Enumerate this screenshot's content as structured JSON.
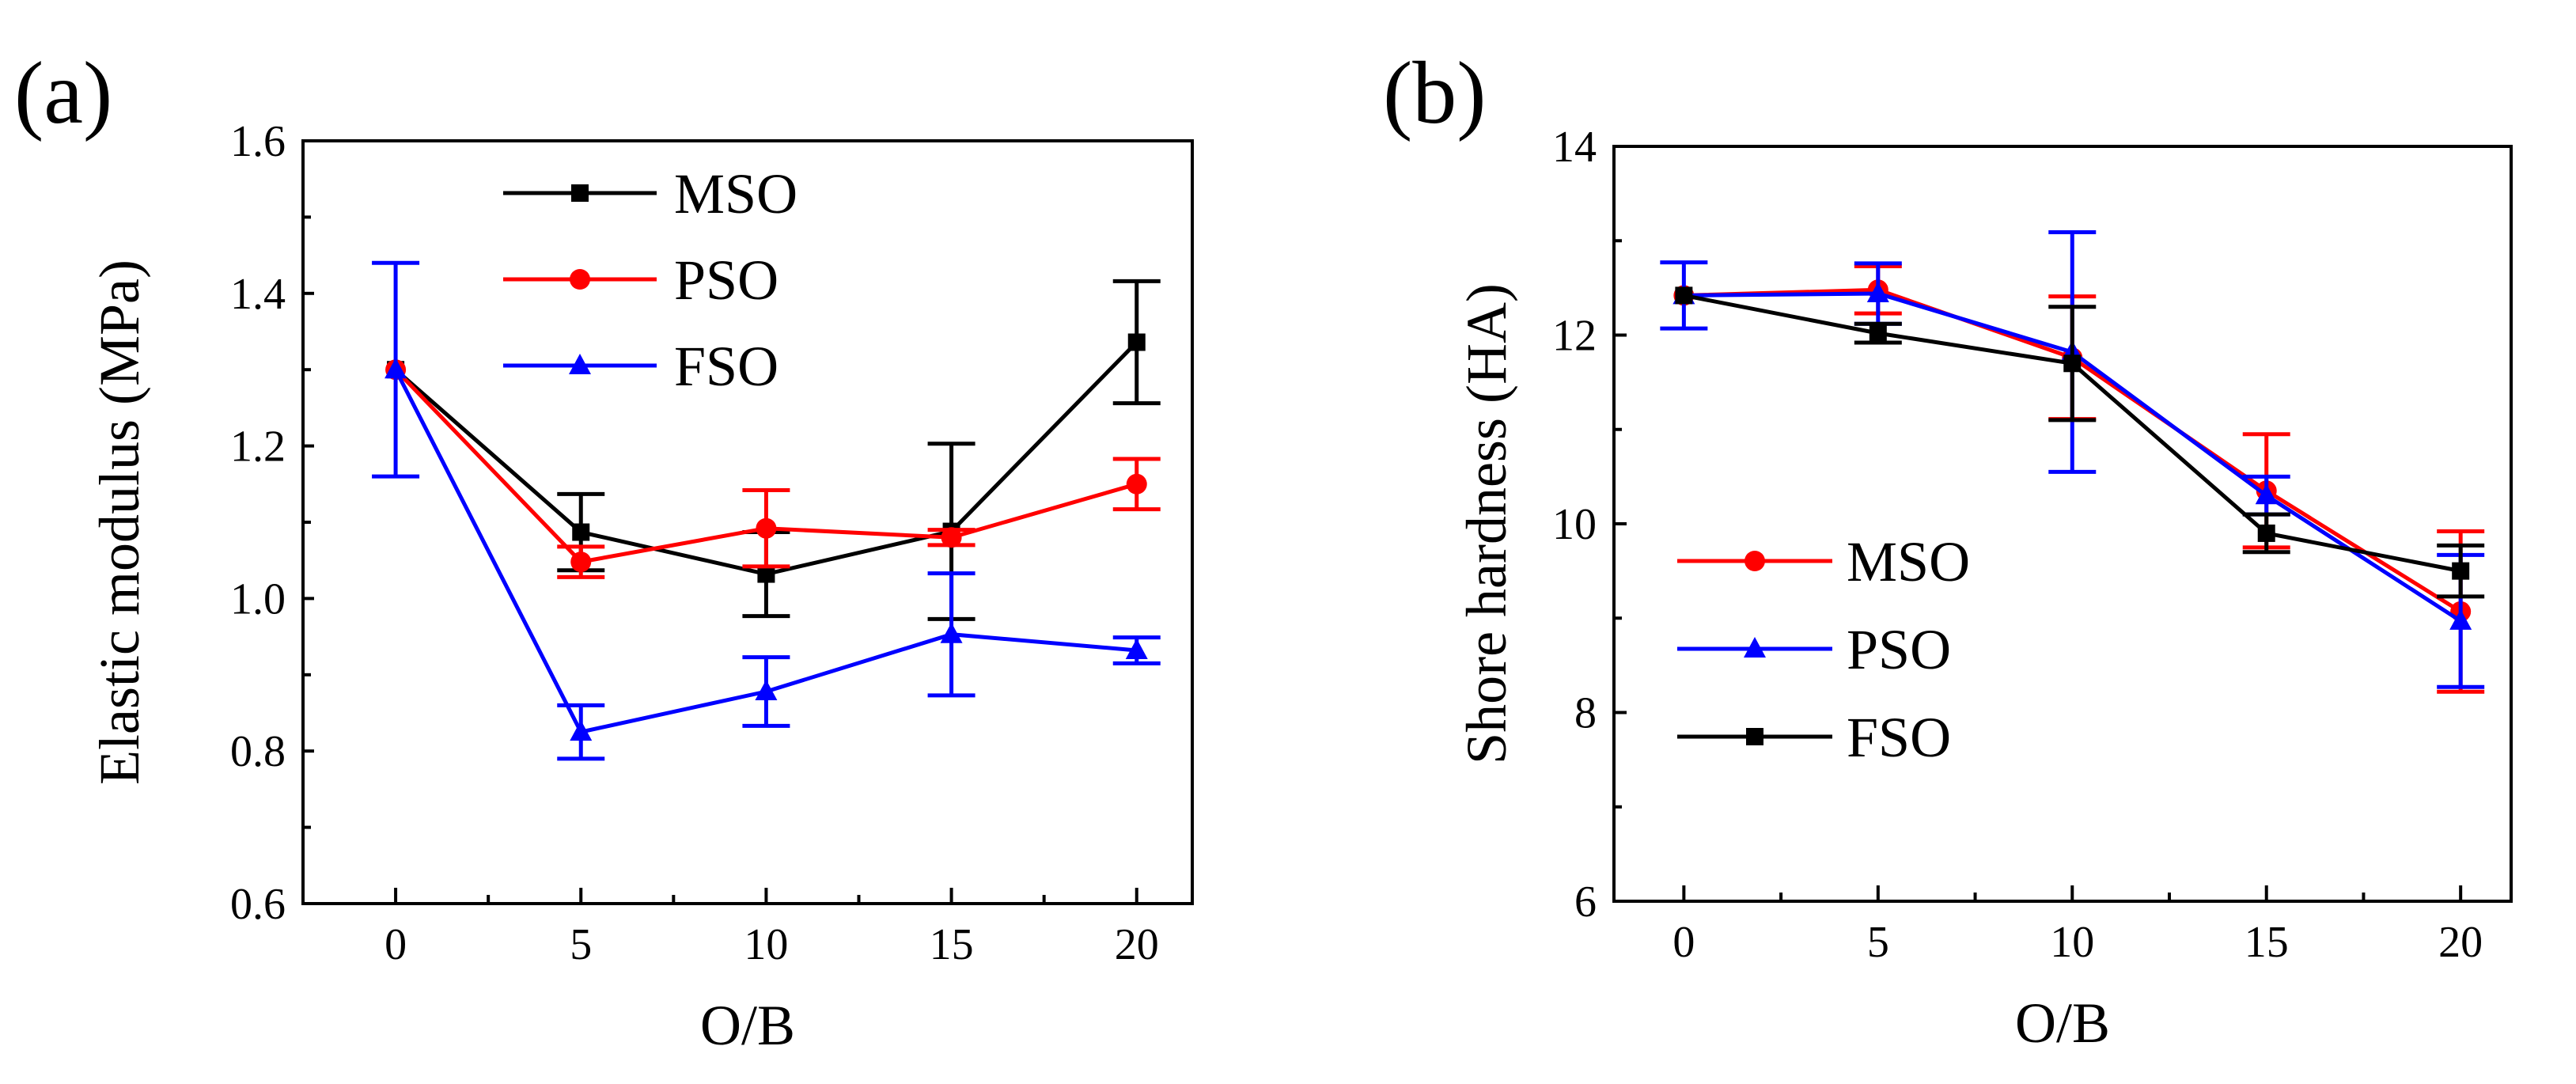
{
  "chart_data": [
    {
      "panel_label": "(a)",
      "type": "line",
      "xlabel": "O/B",
      "ylabel": "Elastic modulus (MPa)",
      "x": [
        0,
        5,
        10,
        15,
        20
      ],
      "xticks": [
        "0",
        "5",
        "10",
        "15",
        "20"
      ],
      "xlim": [
        -2.5,
        21.5
      ],
      "ylim": [
        0.6,
        1.6
      ],
      "yticks": [
        "0.6",
        "0.8",
        "1.0",
        "1.2",
        "1.4",
        "1.6"
      ],
      "grid": false,
      "legend_position": "top-center",
      "series": [
        {
          "name": "MSO",
          "color": "#000000",
          "marker": "square",
          "values": [
            1.3,
            1.087,
            1.032,
            1.088,
            1.336
          ],
          "errors": [
            0.0,
            0.05,
            0.055,
            0.115,
            0.08
          ]
        },
        {
          "name": "PSO",
          "color": "#ff0000",
          "marker": "circle",
          "values": [
            1.3,
            1.048,
            1.092,
            1.08,
            1.15
          ],
          "errors": [
            0.0,
            0.02,
            0.05,
            0.01,
            0.033
          ]
        },
        {
          "name": "FSO",
          "color": "#0000ff",
          "marker": "triangle",
          "values": [
            1.3,
            0.825,
            0.878,
            0.953,
            0.932
          ],
          "errors": [
            0.14,
            0.035,
            0.045,
            0.08,
            0.017
          ]
        }
      ]
    },
    {
      "panel_label": "(b)",
      "type": "line",
      "xlabel": "O/B",
      "ylabel": "Shore hardness (HA)",
      "x": [
        0,
        5,
        10,
        15,
        20
      ],
      "xticks": [
        "0",
        "5",
        "10",
        "15",
        "20"
      ],
      "xlim": [
        -1.8,
        21.3
      ],
      "ylim": [
        6,
        14
      ],
      "yticks": [
        "6",
        "8",
        "10",
        "12",
        "14"
      ],
      "grid": false,
      "legend_position": "bottom-left",
      "series": [
        {
          "name": "MSO",
          "color": "#ff0000",
          "marker": "circle",
          "values": [
            12.42,
            12.48,
            11.76,
            10.35,
            9.07
          ],
          "errors": [
            0.0,
            0.25,
            0.65,
            0.6,
            0.85
          ]
        },
        {
          "name": "PSO",
          "color": "#0000ff",
          "marker": "triangle",
          "values": [
            12.42,
            12.44,
            11.82,
            10.3,
            8.97
          ],
          "errors": [
            0.35,
            0.32,
            1.27,
            0.2,
            0.7
          ]
        },
        {
          "name": "FSO",
          "color": "#000000",
          "marker": "square",
          "values": [
            12.42,
            12.02,
            11.7,
            9.9,
            9.5
          ],
          "errors": [
            0.0,
            0.1,
            0.6,
            0.2,
            0.27
          ]
        }
      ]
    }
  ]
}
